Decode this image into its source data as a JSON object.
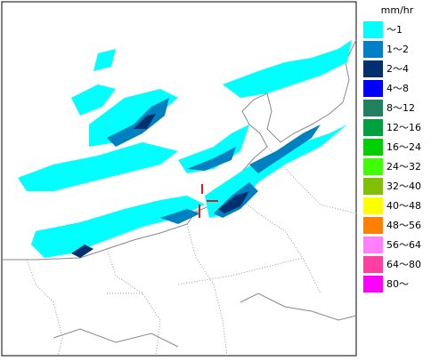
{
  "legend": {
    "unit": "mm/hr",
    "items": [
      {
        "label": "～1",
        "color": "#00ffff"
      },
      {
        "label": "1～2",
        "color": "#0080c8"
      },
      {
        "label": "2～4",
        "color": "#003070"
      },
      {
        "label": "4～8",
        "color": "#0000ff"
      },
      {
        "label": "8～12",
        "color": "#208060"
      },
      {
        "label": "12～16",
        "color": "#00a040"
      },
      {
        "label": "16～24",
        "color": "#00d000"
      },
      {
        "label": "24～32",
        "color": "#40ff00"
      },
      {
        "label": "32～40",
        "color": "#80c000"
      },
      {
        "label": "40～48",
        "color": "#ffff00"
      },
      {
        "label": "48～56",
        "color": "#ff8000"
      },
      {
        "label": "56～64",
        "color": "#ff80ff"
      },
      {
        "label": "64～80",
        "color": "#ff40a0"
      },
      {
        "label": "80～",
        "color": "#ff00ff"
      }
    ]
  }
}
